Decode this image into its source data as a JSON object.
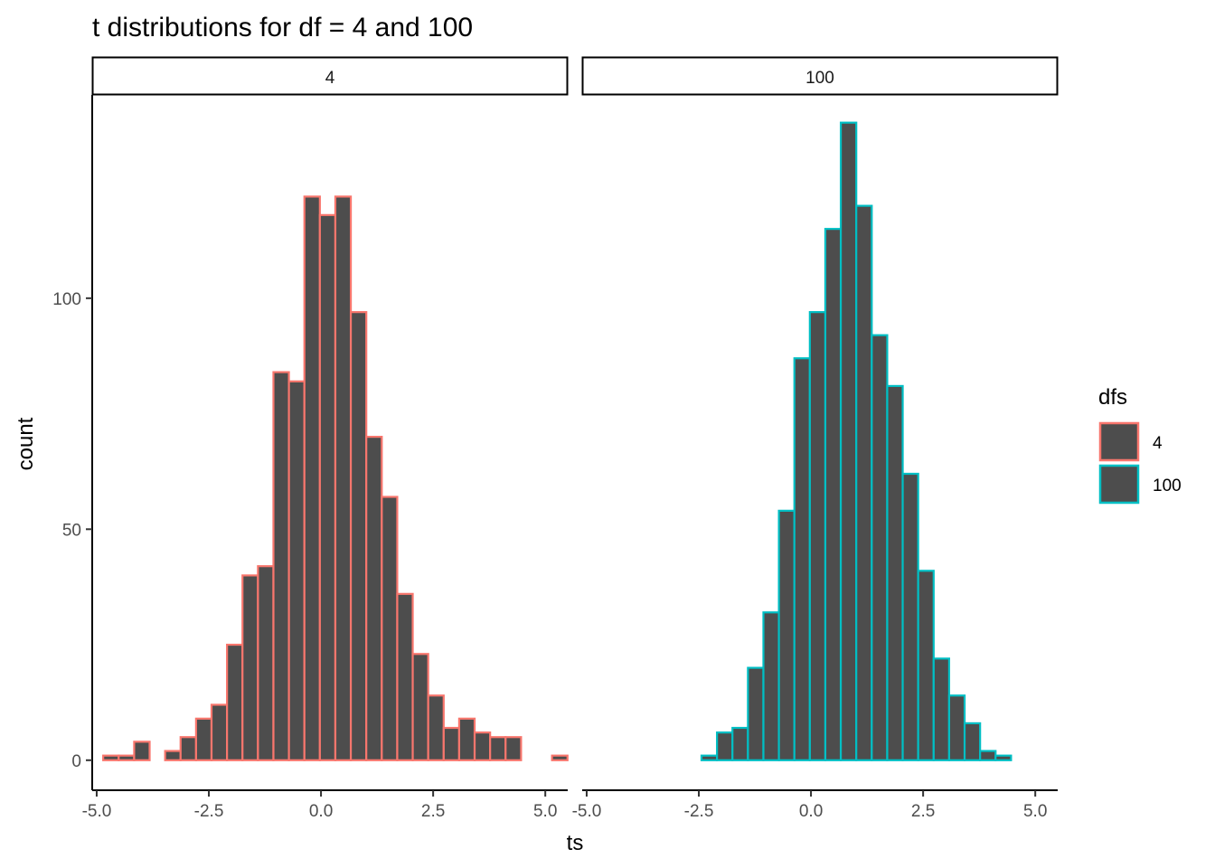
{
  "chart_data": {
    "type": "bar",
    "title": "t distributions for df = 4 and 100",
    "xlabel": "ts",
    "ylabel": "count",
    "xlim": [
      -5.1,
      5.5
    ],
    "ylim": [
      -6.5,
      144
    ],
    "x_ticks": [
      -5.0,
      -2.5,
      0.0,
      2.5,
      5.0
    ],
    "x_tick_labels": [
      "-5.0",
      "-2.5",
      "0.0",
      "2.5",
      "5.0"
    ],
    "y_ticks": [
      0,
      50,
      100
    ],
    "y_tick_labels": [
      "0",
      "50",
      "100"
    ],
    "bin_width": 0.345,
    "bin_start": -4.855,
    "grid": false,
    "legend": {
      "title": "dfs",
      "position": "right",
      "entries": [
        {
          "label": "4",
          "color": "#F8766D"
        },
        {
          "label": "100",
          "color": "#00BFC4"
        }
      ]
    },
    "fill_color": "#4D4D4D",
    "series": [
      {
        "name": "4",
        "panel": "4",
        "color": "#F8766D",
        "values": [
          1,
          1,
          4,
          0,
          2,
          5,
          9,
          12,
          25,
          40,
          42,
          84,
          82,
          122,
          118,
          122,
          97,
          70,
          57,
          36,
          23,
          14,
          7,
          9,
          6,
          5,
          5,
          0,
          0,
          1
        ]
      },
      {
        "name": "100",
        "panel": "100",
        "color": "#00BFC4",
        "values": [
          0,
          0,
          0,
          0,
          0,
          0,
          0,
          1,
          6,
          7,
          20,
          32,
          54,
          87,
          97,
          115,
          138,
          120,
          92,
          81,
          62,
          41,
          22,
          14,
          8,
          2,
          1,
          0,
          0,
          0
        ]
      }
    ]
  }
}
